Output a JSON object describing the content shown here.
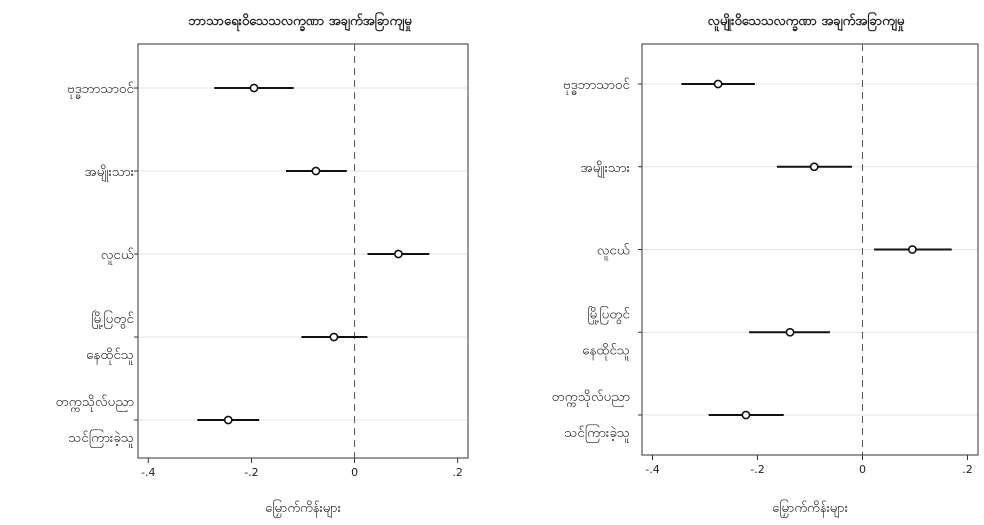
{
  "chart_data": [
    {
      "type": "scatter",
      "title": "ဘာသာရေးဝိသေသလက္ခဏာ အချက်အခြာကျမှု",
      "xlabel": "မြှောက်ကိန်းများ",
      "ylabel": "",
      "categories": [
        "ဗုဒ္ဓဘာသာဝင်",
        "အမျိုးသား",
        "လူငယ်",
        "မြို့ပြတွင် နေထိုင်သူ",
        "တက္ကသိုလ်ပညာ သင်ကြားခဲ့သူ"
      ],
      "category_lines": [
        [
          "ဗုဒ္ဓဘာသာဝင်"
        ],
        [
          "အမျိုးသား"
        ],
        [
          "လူငယ်"
        ],
        [
          "မြို့ပြတွင်",
          "နေထိုင်သူ"
        ],
        [
          "တက္ကသိုလ်ပညာ",
          "သင်ကြားခဲ့သူ"
        ]
      ],
      "series": [
        {
          "estimates": [
            -0.195,
            -0.075,
            0.085,
            -0.04,
            -0.245
          ],
          "ci_low": [
            -0.272,
            -0.133,
            0.025,
            -0.103,
            -0.305
          ],
          "ci_high": [
            -0.118,
            -0.015,
            0.145,
            0.025,
            -0.185
          ]
        }
      ],
      "xlim": [
        -0.42,
        0.22
      ],
      "xticks": [
        -0.4,
        -0.2,
        0,
        0.2
      ],
      "xtick_labels": [
        "-.4",
        "-.2",
        "0",
        ".2"
      ],
      "reference_line": 0,
      "grid": true
    },
    {
      "type": "scatter",
      "title": "လူမျိုးဝိသေသလက္ခဏာ အချက်အခြာကျမှု",
      "xlabel": "မြှောက်ကိန်းများ",
      "ylabel": "",
      "categories": [
        "ဗုဒ္ဓဘာသာဝင်",
        "အမျိုးသား",
        "လူငယ်",
        "မြို့ပြတွင် နေထိုင်သူ",
        "တက္ကသိုလ်ပညာ သင်ကြားခဲ့သူ"
      ],
      "category_lines": [
        [
          "ဗုဒ္ဓဘာသာဝင်"
        ],
        [
          "အမျိုးသား"
        ],
        [
          "လူငယ်"
        ],
        [
          "မြို့ပြတွင်",
          "နေထိုင်သူ"
        ],
        [
          "တက္ကသိုလ်ပညာ",
          "သင်ကြားခဲ့သူ"
        ]
      ],
      "series": [
        {
          "estimates": [
            -0.275,
            -0.092,
            0.095,
            -0.138,
            -0.222
          ],
          "ci_low": [
            -0.345,
            -0.163,
            0.022,
            -0.216,
            -0.293
          ],
          "ci_high": [
            -0.205,
            -0.02,
            0.17,
            -0.062,
            -0.15
          ]
        }
      ],
      "xlim": [
        -0.42,
        0.22
      ],
      "xticks": [
        -0.4,
        -0.2,
        0,
        0.2
      ],
      "xtick_labels": [
        "-.4",
        "-.2",
        "0",
        ".2"
      ],
      "reference_line": 0,
      "grid": true
    }
  ]
}
